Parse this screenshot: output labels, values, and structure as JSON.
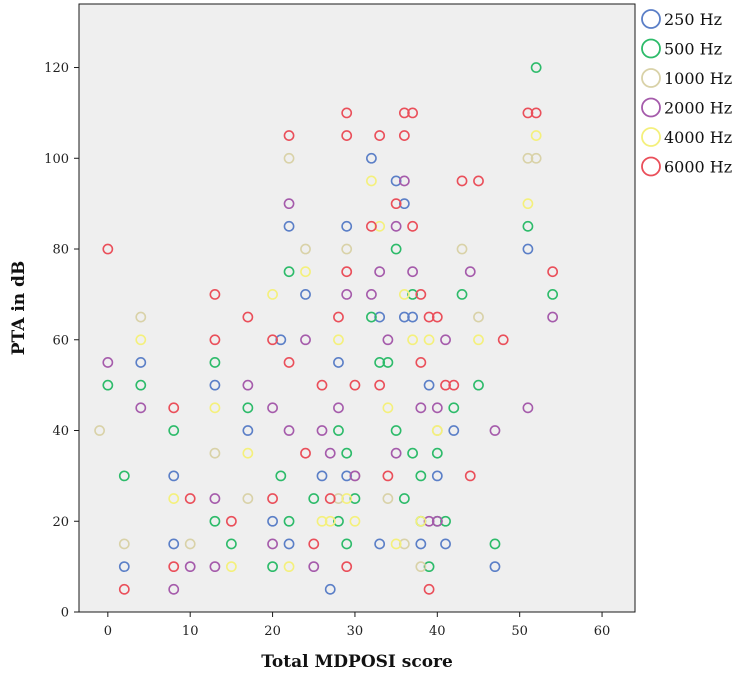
{
  "chart_data": {
    "type": "scatter",
    "title": "",
    "xlabel": "Total MDPOSI score",
    "ylabel": "PTA in dB",
    "xlim": [
      -3.5,
      64
    ],
    "ylim": [
      0,
      134
    ],
    "xticks": [
      0,
      10,
      20,
      30,
      40,
      50,
      60
    ],
    "yticks": [
      0,
      20,
      40,
      60,
      80,
      100,
      120
    ],
    "grid": false,
    "legend_position": "top-right outside",
    "series": [
      {
        "name": "250 Hz",
        "color": "#5b7fc7",
        "points": [
          [
            2,
            10
          ],
          [
            4,
            55
          ],
          [
            8,
            30
          ],
          [
            8,
            15
          ],
          [
            13,
            50
          ],
          [
            17,
            40
          ],
          [
            20,
            20
          ],
          [
            21,
            60
          ],
          [
            22,
            85
          ],
          [
            22,
            15
          ],
          [
            24,
            70
          ],
          [
            26,
            30
          ],
          [
            27,
            5
          ],
          [
            28,
            55
          ],
          [
            29,
            85
          ],
          [
            29,
            30
          ],
          [
            32,
            100
          ],
          [
            33,
            65
          ],
          [
            33,
            15
          ],
          [
            35,
            95
          ],
          [
            36,
            90
          ],
          [
            36,
            65
          ],
          [
            37,
            65
          ],
          [
            38,
            15
          ],
          [
            39,
            50
          ],
          [
            40,
            30
          ],
          [
            41,
            15
          ],
          [
            42,
            40
          ],
          [
            47,
            10
          ],
          [
            51,
            80
          ]
        ]
      },
      {
        "name": "500 Hz",
        "color": "#2dbb6a",
        "points": [
          [
            0,
            50
          ],
          [
            2,
            30
          ],
          [
            4,
            50
          ],
          [
            8,
            40
          ],
          [
            13,
            55
          ],
          [
            13,
            20
          ],
          [
            15,
            15
          ],
          [
            17,
            45
          ],
          [
            20,
            10
          ],
          [
            21,
            30
          ],
          [
            22,
            75
          ],
          [
            22,
            20
          ],
          [
            25,
            25
          ],
          [
            28,
            40
          ],
          [
            28,
            20
          ],
          [
            29,
            35
          ],
          [
            29,
            15
          ],
          [
            30,
            25
          ],
          [
            32,
            65
          ],
          [
            33,
            55
          ],
          [
            34,
            55
          ],
          [
            35,
            80
          ],
          [
            35,
            40
          ],
          [
            36,
            25
          ],
          [
            37,
            70
          ],
          [
            37,
            35
          ],
          [
            38,
            20
          ],
          [
            38,
            30
          ],
          [
            39,
            10
          ],
          [
            40,
            35
          ],
          [
            40,
            20
          ],
          [
            41,
            20
          ],
          [
            42,
            45
          ],
          [
            43,
            70
          ],
          [
            45,
            50
          ],
          [
            47,
            15
          ],
          [
            51,
            85
          ],
          [
            52,
            120
          ],
          [
            54,
            70
          ]
        ]
      },
      {
        "name": "1000 Hz",
        "color": "#d9d2a8",
        "points": [
          [
            -1,
            40
          ],
          [
            2,
            15
          ],
          [
            4,
            65
          ],
          [
            10,
            15
          ],
          [
            13,
            35
          ],
          [
            17,
            25
          ],
          [
            22,
            100
          ],
          [
            24,
            80
          ],
          [
            28,
            25
          ],
          [
            29,
            80
          ],
          [
            30,
            30
          ],
          [
            34,
            25
          ],
          [
            36,
            15
          ],
          [
            38,
            10
          ],
          [
            40,
            40
          ],
          [
            43,
            80
          ],
          [
            45,
            65
          ],
          [
            51,
            100
          ],
          [
            52,
            100
          ]
        ]
      },
      {
        "name": "2000 Hz",
        "color": "#a55bab",
        "points": [
          [
            0,
            55
          ],
          [
            4,
            45
          ],
          [
            8,
            5
          ],
          [
            10,
            10
          ],
          [
            13,
            25
          ],
          [
            13,
            10
          ],
          [
            17,
            50
          ],
          [
            20,
            45
          ],
          [
            20,
            15
          ],
          [
            22,
            90
          ],
          [
            22,
            40
          ],
          [
            24,
            60
          ],
          [
            25,
            10
          ],
          [
            26,
            40
          ],
          [
            27,
            35
          ],
          [
            28,
            45
          ],
          [
            29,
            70
          ],
          [
            30,
            30
          ],
          [
            32,
            70
          ],
          [
            33,
            75
          ],
          [
            34,
            60
          ],
          [
            35,
            85
          ],
          [
            35,
            35
          ],
          [
            36,
            95
          ],
          [
            37,
            75
          ],
          [
            38,
            45
          ],
          [
            39,
            20
          ],
          [
            40,
            45
          ],
          [
            40,
            20
          ],
          [
            41,
            60
          ],
          [
            44,
            75
          ],
          [
            47,
            40
          ],
          [
            51,
            45
          ],
          [
            54,
            65
          ]
        ]
      },
      {
        "name": "4000 Hz",
        "color": "#f4f07c",
        "points": [
          [
            4,
            60
          ],
          [
            8,
            25
          ],
          [
            13,
            45
          ],
          [
            15,
            10
          ],
          [
            17,
            35
          ],
          [
            20,
            70
          ],
          [
            22,
            10
          ],
          [
            24,
            75
          ],
          [
            26,
            20
          ],
          [
            27,
            20
          ],
          [
            28,
            60
          ],
          [
            29,
            25
          ],
          [
            30,
            20
          ],
          [
            32,
            95
          ],
          [
            33,
            85
          ],
          [
            34,
            45
          ],
          [
            35,
            15
          ],
          [
            36,
            70
          ],
          [
            37,
            60
          ],
          [
            38,
            20
          ],
          [
            39,
            60
          ],
          [
            40,
            40
          ],
          [
            45,
            60
          ],
          [
            51,
            90
          ],
          [
            52,
            105
          ]
        ]
      },
      {
        "name": "6000 Hz",
        "color": "#ea4f5a",
        "points": [
          [
            0,
            80
          ],
          [
            2,
            5
          ],
          [
            8,
            45
          ],
          [
            8,
            10
          ],
          [
            10,
            25
          ],
          [
            13,
            70
          ],
          [
            13,
            60
          ],
          [
            15,
            20
          ],
          [
            17,
            65
          ],
          [
            20,
            60
          ],
          [
            20,
            25
          ],
          [
            22,
            105
          ],
          [
            22,
            55
          ],
          [
            24,
            35
          ],
          [
            25,
            15
          ],
          [
            26,
            50
          ],
          [
            27,
            25
          ],
          [
            28,
            65
          ],
          [
            29,
            110
          ],
          [
            29,
            105
          ],
          [
            29,
            75
          ],
          [
            29,
            10
          ],
          [
            30,
            50
          ],
          [
            32,
            85
          ],
          [
            33,
            105
          ],
          [
            33,
            50
          ],
          [
            34,
            30
          ],
          [
            35,
            90
          ],
          [
            36,
            110
          ],
          [
            36,
            105
          ],
          [
            37,
            110
          ],
          [
            37,
            85
          ],
          [
            38,
            70
          ],
          [
            38,
            55
          ],
          [
            39,
            65
          ],
          [
            39,
            5
          ],
          [
            40,
            65
          ],
          [
            41,
            50
          ],
          [
            42,
            50
          ],
          [
            43,
            95
          ],
          [
            44,
            30
          ],
          [
            45,
            95
          ],
          [
            48,
            60
          ],
          [
            51,
            110
          ],
          [
            52,
            110
          ],
          [
            54,
            75
          ]
        ]
      }
    ]
  }
}
